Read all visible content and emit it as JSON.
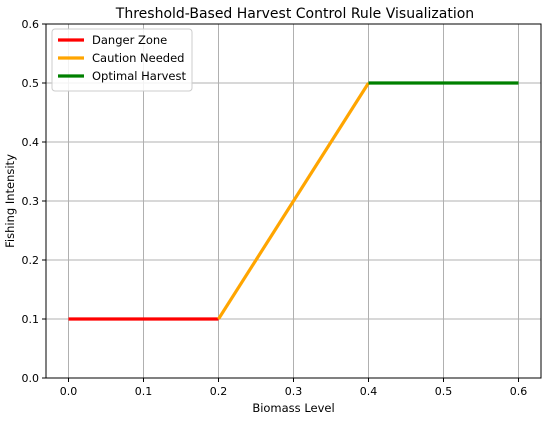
{
  "chart_data": {
    "type": "line",
    "title": "Threshold-Based Harvest Control Rule Visualization",
    "xlabel": "Biomass Level",
    "ylabel": "Fishing Intensity",
    "xlim": [
      -0.03,
      0.63
    ],
    "ylim": [
      0,
      0.6
    ],
    "xticks": [
      0.0,
      0.1,
      0.2,
      0.3,
      0.4,
      0.5,
      0.6
    ],
    "yticks": [
      0.0,
      0.1,
      0.2,
      0.3,
      0.4,
      0.5,
      0.6
    ],
    "xtick_labels": [
      "0.0",
      "0.1",
      "0.2",
      "0.3",
      "0.4",
      "0.5",
      "0.6"
    ],
    "ytick_labels": [
      "0.0",
      "0.1",
      "0.2",
      "0.3",
      "0.4",
      "0.5",
      "0.6"
    ],
    "grid": true,
    "legend_position": "upper-left",
    "series": [
      {
        "name": "Danger Zone",
        "color": "#ff0000",
        "x": [
          0.0,
          0.2
        ],
        "y": [
          0.1,
          0.1
        ]
      },
      {
        "name": "Caution Needed",
        "color": "#ffa500",
        "x": [
          0.2,
          0.4
        ],
        "y": [
          0.1,
          0.5
        ]
      },
      {
        "name": "Optimal Harvest",
        "color": "#008000",
        "x": [
          0.4,
          0.6
        ],
        "y": [
          0.5,
          0.5
        ]
      }
    ]
  }
}
